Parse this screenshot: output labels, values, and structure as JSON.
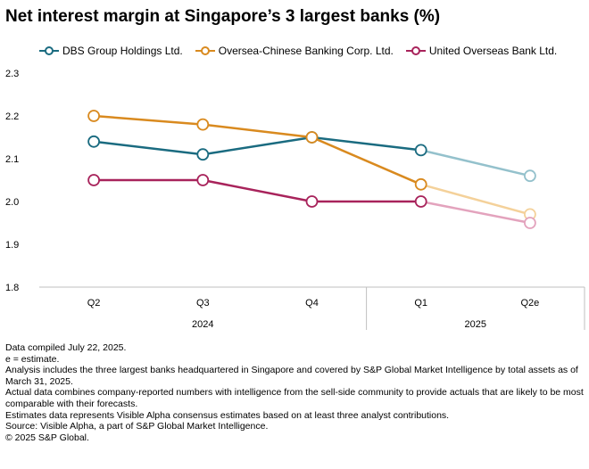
{
  "chart_data": {
    "type": "line",
    "title": "Net interest margin at Singapore’s 3 largest banks (%)",
    "categories": [
      "Q2",
      "Q3",
      "Q4",
      "Q1",
      "Q2e"
    ],
    "category_groups": [
      {
        "label": "2024",
        "categories": [
          "Q2",
          "Q3",
          "Q4"
        ]
      },
      {
        "label": "2025",
        "categories": [
          "Q1",
          "Q2e"
        ]
      }
    ],
    "ylim": [
      1.8,
      2.3
    ],
    "yticks": [
      "2.3",
      "2.2",
      "2.1",
      "2.0",
      "1.9",
      "1.8"
    ],
    "actual_count": 4,
    "series": [
      {
        "name": "DBS Group Holdings Ltd.",
        "color": "#1a6b80",
        "light_color": "#94c1cc",
        "values": [
          2.14,
          2.11,
          2.15,
          2.12,
          2.06
        ]
      },
      {
        "name": "Oversea-Chinese Banking Corp. Ltd.",
        "color": "#d98a1f",
        "light_color": "#f4d19a",
        "values": [
          2.2,
          2.18,
          2.15,
          2.04,
          1.97
        ]
      },
      {
        "name": "United Overseas Bank Ltd.",
        "color": "#a8235b",
        "light_color": "#e3a3bd",
        "values": [
          2.05,
          2.05,
          2.0,
          2.0,
          1.95
        ]
      }
    ]
  },
  "notes": [
    "Data compiled July 22, 2025.",
    "e = estimate.",
    "Analysis includes the three largest banks headquartered in Singapore and covered by S&P Global Market Intelligence by total assets as of March 31, 2025.",
    "Actual data combines company-reported numbers with intelligence from the sell-side community to provide actuals that are likely to be most comparable with their forecasts.",
    "Estimates data represents Visible Alpha consensus estimates based on at least three analyst contributions.",
    "Source: Visible Alpha, a part of S&P Global Market Intelligence.",
    "© 2025 S&P Global."
  ]
}
